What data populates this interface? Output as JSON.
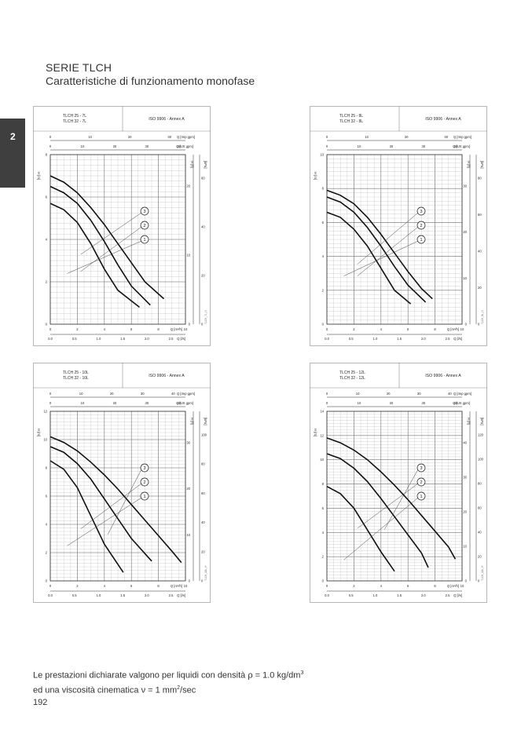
{
  "header": {
    "series_title": "SERIE TLCH",
    "subtitle": "Caratteristiche di funzionamento monofase"
  },
  "section_tab": {
    "number": "2"
  },
  "footer": {
    "note_line1_prefix": "Le prestazioni dichiarate valgono per liquidi con densità ρ = 1.0 kg/dm",
    "note_line1_sup": "3",
    "note_line2_prefix": "ed una viscosità cinematica ν = 1 mm",
    "note_line2_sup": "2",
    "note_line2_suffix": "/sec"
  },
  "page_number": "192",
  "chart_data": [
    {
      "type": "line",
      "models": [
        "TLCH 25 - 7L",
        "TLCH 32 - 7L"
      ],
      "standard": "ISO 9906 - Annex A",
      "flow_top_label": "Q [Imp gpm]",
      "flow_top_ticks": [
        "0",
        "10",
        "20",
        "30"
      ],
      "flow_usgpm_label": "Q [US gpm]",
      "flow_usgpm_ticks": [
        "0",
        "10",
        "20",
        "30",
        "40"
      ],
      "x_label": "Q [m³/h]",
      "x_ticks": [
        "0",
        "2",
        "4",
        "6",
        "8",
        "10"
      ],
      "x2_label": "Q [l/s]",
      "x2_ticks": [
        "0.0",
        "0.5",
        "1.0",
        "1.5",
        "2.0",
        "2.5"
      ],
      "y_label": "H [m]",
      "y_ticks": [
        "0",
        "2",
        "4",
        "6",
        "8"
      ],
      "ylim": [
        0,
        8
      ],
      "xlim": [
        0,
        10
      ],
      "y_ft_label": "H [ft]",
      "y_ft_ticks": [
        "0",
        "10",
        "20"
      ],
      "y_kpa_label": "[kPa]",
      "y_kpa_ticks": [
        "0",
        "20",
        "40",
        "60"
      ],
      "code": "TLCH_7L_H",
      "series": [
        {
          "name": "1",
          "x": [
            0,
            1,
            2,
            3,
            4,
            5,
            6.6
          ],
          "y": [
            5.7,
            5.4,
            4.8,
            3.8,
            2.6,
            1.6,
            0.8
          ]
        },
        {
          "name": "2",
          "x": [
            0,
            1,
            2,
            3,
            4,
            5,
            6,
            7.4
          ],
          "y": [
            6.5,
            6.2,
            5.7,
            4.9,
            3.9,
            2.8,
            1.8,
            0.9
          ]
        },
        {
          "name": "3",
          "x": [
            0,
            1,
            2,
            3,
            4,
            5,
            6,
            7,
            8.4
          ],
          "y": [
            7.0,
            6.7,
            6.2,
            5.5,
            4.7,
            3.8,
            2.9,
            2.0,
            1.2
          ]
        }
      ]
    },
    {
      "type": "line",
      "models": [
        "TLCH 25 - 8L",
        "TLCH 32 - 8L"
      ],
      "standard": "ISO 9906 - Annex A",
      "flow_top_label": "Q [Imp gpm]",
      "flow_top_ticks": [
        "0",
        "10",
        "20",
        "30"
      ],
      "flow_usgpm_label": "Q [US gpm]",
      "flow_usgpm_ticks": [
        "0",
        "10",
        "20",
        "30",
        "40"
      ],
      "x_label": "Q [m³/h]",
      "x_ticks": [
        "0",
        "2",
        "4",
        "6",
        "8",
        "10"
      ],
      "x2_label": "Q [l/s]",
      "x2_ticks": [
        "0.0",
        "0.5",
        "1.0",
        "1.5",
        "2.0",
        "2.5"
      ],
      "y_label": "H [m]",
      "y_ticks": [
        "0",
        "2",
        "4",
        "6",
        "8",
        "10"
      ],
      "ylim": [
        0,
        10
      ],
      "xlim": [
        0,
        10
      ],
      "y_ft_label": "H [ft]",
      "y_ft_ticks": [
        "0",
        "10",
        "20",
        "30"
      ],
      "y_kpa_label": "[kPa]",
      "y_kpa_ticks": [
        "0",
        "20",
        "40",
        "60",
        "80"
      ],
      "code": "TLCH_8L_H",
      "series": [
        {
          "name": "1",
          "x": [
            0,
            1,
            2,
            3,
            4,
            5,
            6.2
          ],
          "y": [
            6.6,
            6.3,
            5.6,
            4.6,
            3.3,
            2.0,
            1.2
          ]
        },
        {
          "name": "2",
          "x": [
            0,
            1,
            2,
            3,
            4,
            5,
            6,
            7.3
          ],
          "y": [
            7.5,
            7.2,
            6.6,
            5.7,
            4.6,
            3.4,
            2.3,
            1.3
          ]
        },
        {
          "name": "3",
          "x": [
            0,
            1,
            2,
            3,
            4,
            5,
            6,
            7,
            7.8
          ],
          "y": [
            7.9,
            7.6,
            7.1,
            6.3,
            5.3,
            4.2,
            3.1,
            2.1,
            1.5
          ]
        }
      ]
    },
    {
      "type": "line",
      "models": [
        "TLCH 25 - 10L",
        "TLCH 32 - 10L"
      ],
      "standard": "ISO 9906 - Annex A",
      "flow_top_label": "Q [Imp gpm]",
      "flow_top_ticks": [
        "0",
        "10",
        "20",
        "30",
        "40"
      ],
      "flow_usgpm_label": "Q [US gpm]",
      "flow_usgpm_ticks": [
        "0",
        "10",
        "20",
        "30",
        "40"
      ],
      "x_label": "Q [m³/h]",
      "x_ticks": [
        "0",
        "2",
        "4",
        "6",
        "8",
        "10"
      ],
      "x2_label": "Q [l/s]",
      "x2_ticks": [
        "0.0",
        "0.5",
        "1.0",
        "1.5",
        "2.0",
        "2.5"
      ],
      "y_label": "H [m]",
      "y_ticks": [
        "0",
        "2",
        "4",
        "6",
        "8",
        "10",
        "12"
      ],
      "ylim": [
        0,
        12
      ],
      "xlim": [
        0,
        10
      ],
      "y_ft_label": "H [ft]",
      "y_ft_ticks": [
        "0",
        "10",
        "20",
        "30"
      ],
      "y_kpa_label": "[kPa]",
      "y_kpa_ticks": [
        "0",
        "20",
        "40",
        "60",
        "80",
        "100"
      ],
      "code": "TLCH_10L_H",
      "series": [
        {
          "name": "1",
          "x": [
            0,
            1,
            2,
            3,
            4,
            5.4
          ],
          "y": [
            8.5,
            7.9,
            6.6,
            4.6,
            2.6,
            0.6
          ]
        },
        {
          "name": "2",
          "x": [
            0,
            1,
            2,
            3,
            4,
            5,
            6,
            7.5
          ],
          "y": [
            9.5,
            9.1,
            8.3,
            7.2,
            5.8,
            4.4,
            3.0,
            1.4
          ]
        },
        {
          "name": "3",
          "x": [
            0,
            1,
            2,
            3,
            4,
            5,
            6,
            7,
            8,
            9,
            9.7
          ],
          "y": [
            10.2,
            9.8,
            9.2,
            8.4,
            7.5,
            6.5,
            5.4,
            4.3,
            3.2,
            2.1,
            1.3
          ]
        }
      ]
    },
    {
      "type": "line",
      "models": [
        "TLCH 25 - 12L",
        "TLCH 32 - 12L"
      ],
      "standard": "ISO 9906 - Annex A",
      "flow_top_label": "Q [Imp gpm]",
      "flow_top_ticks": [
        "0",
        "10",
        "20",
        "30",
        "40"
      ],
      "flow_usgpm_label": "Q [US gpm]",
      "flow_usgpm_ticks": [
        "0",
        "10",
        "20",
        "30",
        "40"
      ],
      "x_label": "Q [m³/h]",
      "x_ticks": [
        "0",
        "2",
        "4",
        "6",
        "8",
        "10"
      ],
      "x2_label": "Q [l/s]",
      "x2_ticks": [
        "0.0",
        "0.5",
        "1.0",
        "1.5",
        "2.0",
        "2.5"
      ],
      "y_label": "H [m]",
      "y_ticks": [
        "0",
        "2",
        "4",
        "6",
        "8",
        "10",
        "12",
        "14"
      ],
      "ylim": [
        0,
        14
      ],
      "xlim": [
        0,
        10
      ],
      "y_ft_label": "H [ft]",
      "y_ft_ticks": [
        "0",
        "10",
        "20",
        "30",
        "40"
      ],
      "y_kpa_label": "[kPa]",
      "y_kpa_ticks": [
        "0",
        "20",
        "40",
        "60",
        "80",
        "100",
        "120"
      ],
      "code": "TLCH_12L_H",
      "series": [
        {
          "name": "1",
          "x": [
            0,
            1,
            2,
            3,
            4,
            5.0
          ],
          "y": [
            7.8,
            7.2,
            6.0,
            4.2,
            2.4,
            0.8
          ]
        },
        {
          "name": "2",
          "x": [
            0,
            1,
            2,
            3,
            4,
            5,
            6,
            7,
            7.5
          ],
          "y": [
            10.5,
            10.1,
            9.3,
            8.2,
            6.8,
            5.3,
            3.8,
            2.3,
            1.1
          ]
        },
        {
          "name": "3",
          "x": [
            0,
            1,
            2,
            3,
            4,
            5,
            6,
            7,
            8,
            9,
            9.5
          ],
          "y": [
            11.8,
            11.4,
            10.8,
            10.0,
            9.0,
            7.9,
            6.7,
            5.4,
            4.1,
            2.8,
            1.8
          ]
        }
      ]
    }
  ]
}
